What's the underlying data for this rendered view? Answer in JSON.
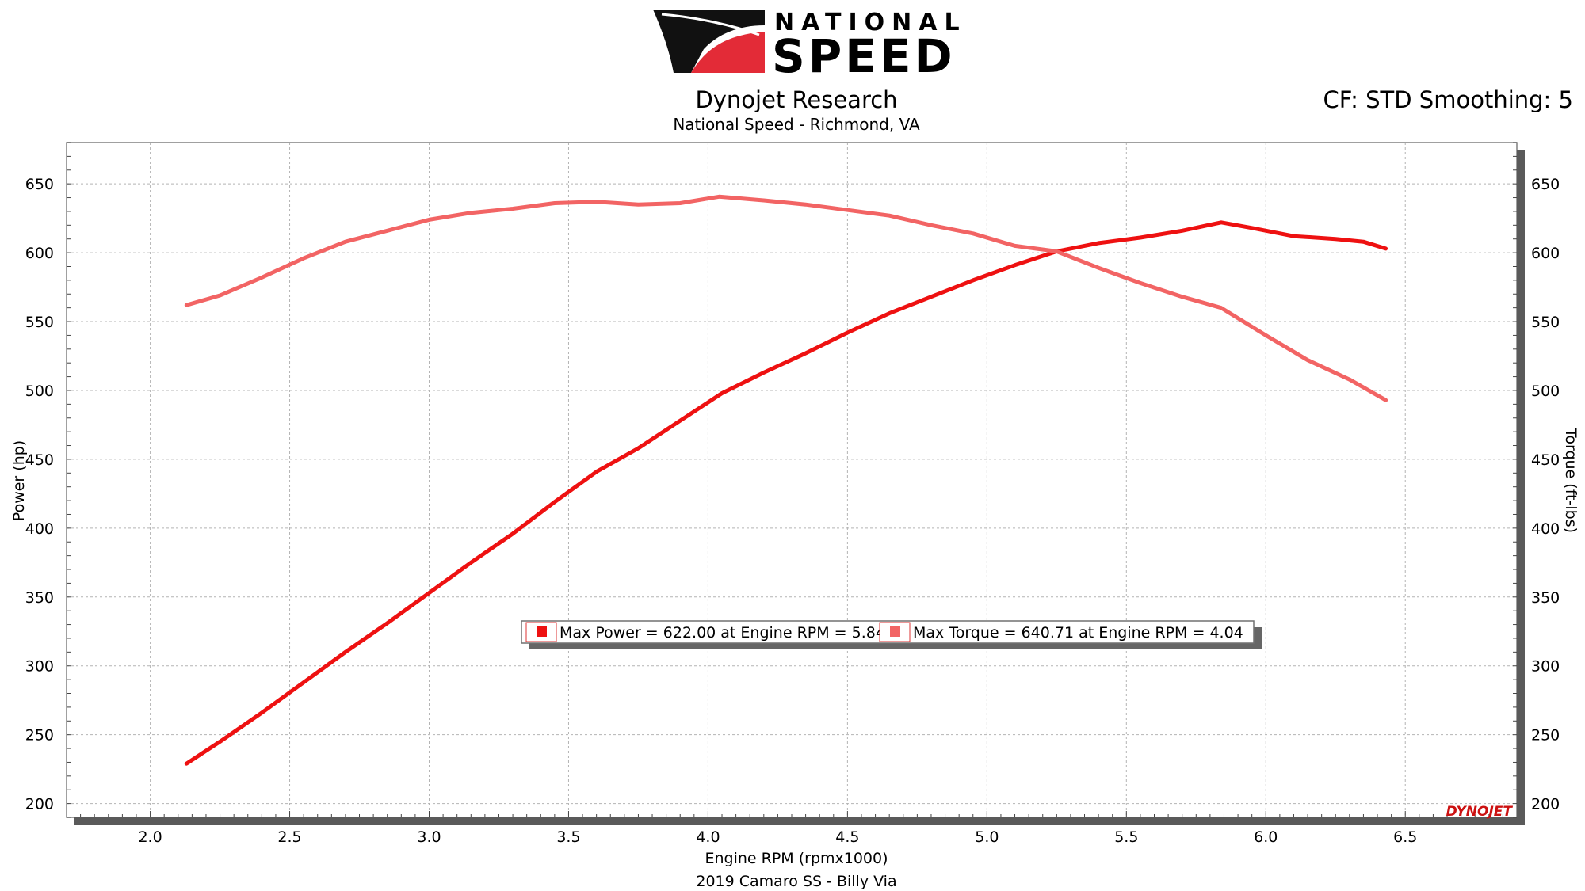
{
  "logo": {
    "brand_top": "NATIONAL",
    "brand_bottom": "SPEED",
    "colors": {
      "red": "#e32b37",
      "black": "#111111"
    }
  },
  "header": {
    "title": "Dynojet Research",
    "subtitle": "National Speed - Richmond, VA",
    "settings": "CF: STD Smoothing: 5"
  },
  "footer": {
    "vehicle": "2019 Camaro SS - Billy Via"
  },
  "watermark": "DYNOJET",
  "colors": {
    "power": "#ee1111",
    "torque": "#f26464",
    "grid": "#b4b4b4"
  },
  "chart_data": {
    "type": "line",
    "xlabel": "Engine RPM (rpmx1000)",
    "ylabel_left": "Power (hp)",
    "ylabel_right": "Torque (ft-lbs)",
    "xlim": [
      1.7,
      6.9
    ],
    "ylim": [
      190,
      680
    ],
    "x_ticks": [
      "2.0",
      "2.5",
      "3.0",
      "3.5",
      "4.0",
      "4.5",
      "5.0",
      "5.5",
      "6.0",
      "6.5"
    ],
    "y_ticks": [
      "200",
      "250",
      "300",
      "350",
      "400",
      "450",
      "500",
      "550",
      "600",
      "650"
    ],
    "grid": true,
    "legend": {
      "placement": "center",
      "entries": [
        "Max Power = 622.00 at Engine RPM = 5.84",
        "Max Torque = 640.71 at Engine RPM = 4.04"
      ]
    },
    "series": [
      {
        "key": "power",
        "x": [
          2.13,
          2.25,
          2.4,
          2.55,
          2.7,
          2.85,
          3.0,
          3.15,
          3.3,
          3.45,
          3.6,
          3.75,
          3.9,
          4.05,
          4.2,
          4.35,
          4.5,
          4.65,
          4.8,
          4.95,
          5.1,
          5.25,
          5.4,
          5.55,
          5.7,
          5.84,
          5.95,
          6.1,
          6.25,
          6.35,
          6.43
        ],
        "values": [
          229,
          245,
          266,
          288,
          310,
          331,
          353,
          375,
          396,
          419,
          441,
          458,
          478,
          498,
          513,
          527,
          542,
          556,
          568,
          580,
          591,
          601,
          607,
          611,
          616,
          622,
          618,
          612,
          610,
          608,
          603
        ]
      },
      {
        "key": "torque",
        "x": [
          2.13,
          2.25,
          2.4,
          2.55,
          2.7,
          2.85,
          3.0,
          3.15,
          3.3,
          3.45,
          3.6,
          3.75,
          3.9,
          4.04,
          4.2,
          4.35,
          4.5,
          4.65,
          4.8,
          4.95,
          5.1,
          5.25,
          5.4,
          5.55,
          5.7,
          5.84,
          6.0,
          6.15,
          6.3,
          6.43
        ],
        "values": [
          562,
          569,
          582,
          596,
          608,
          616,
          624,
          629,
          632,
          636,
          637,
          635,
          636,
          640.71,
          638,
          635,
          631,
          627,
          620,
          614,
          605,
          601,
          589,
          578,
          568,
          560,
          540,
          522,
          508,
          493
        ]
      }
    ]
  }
}
